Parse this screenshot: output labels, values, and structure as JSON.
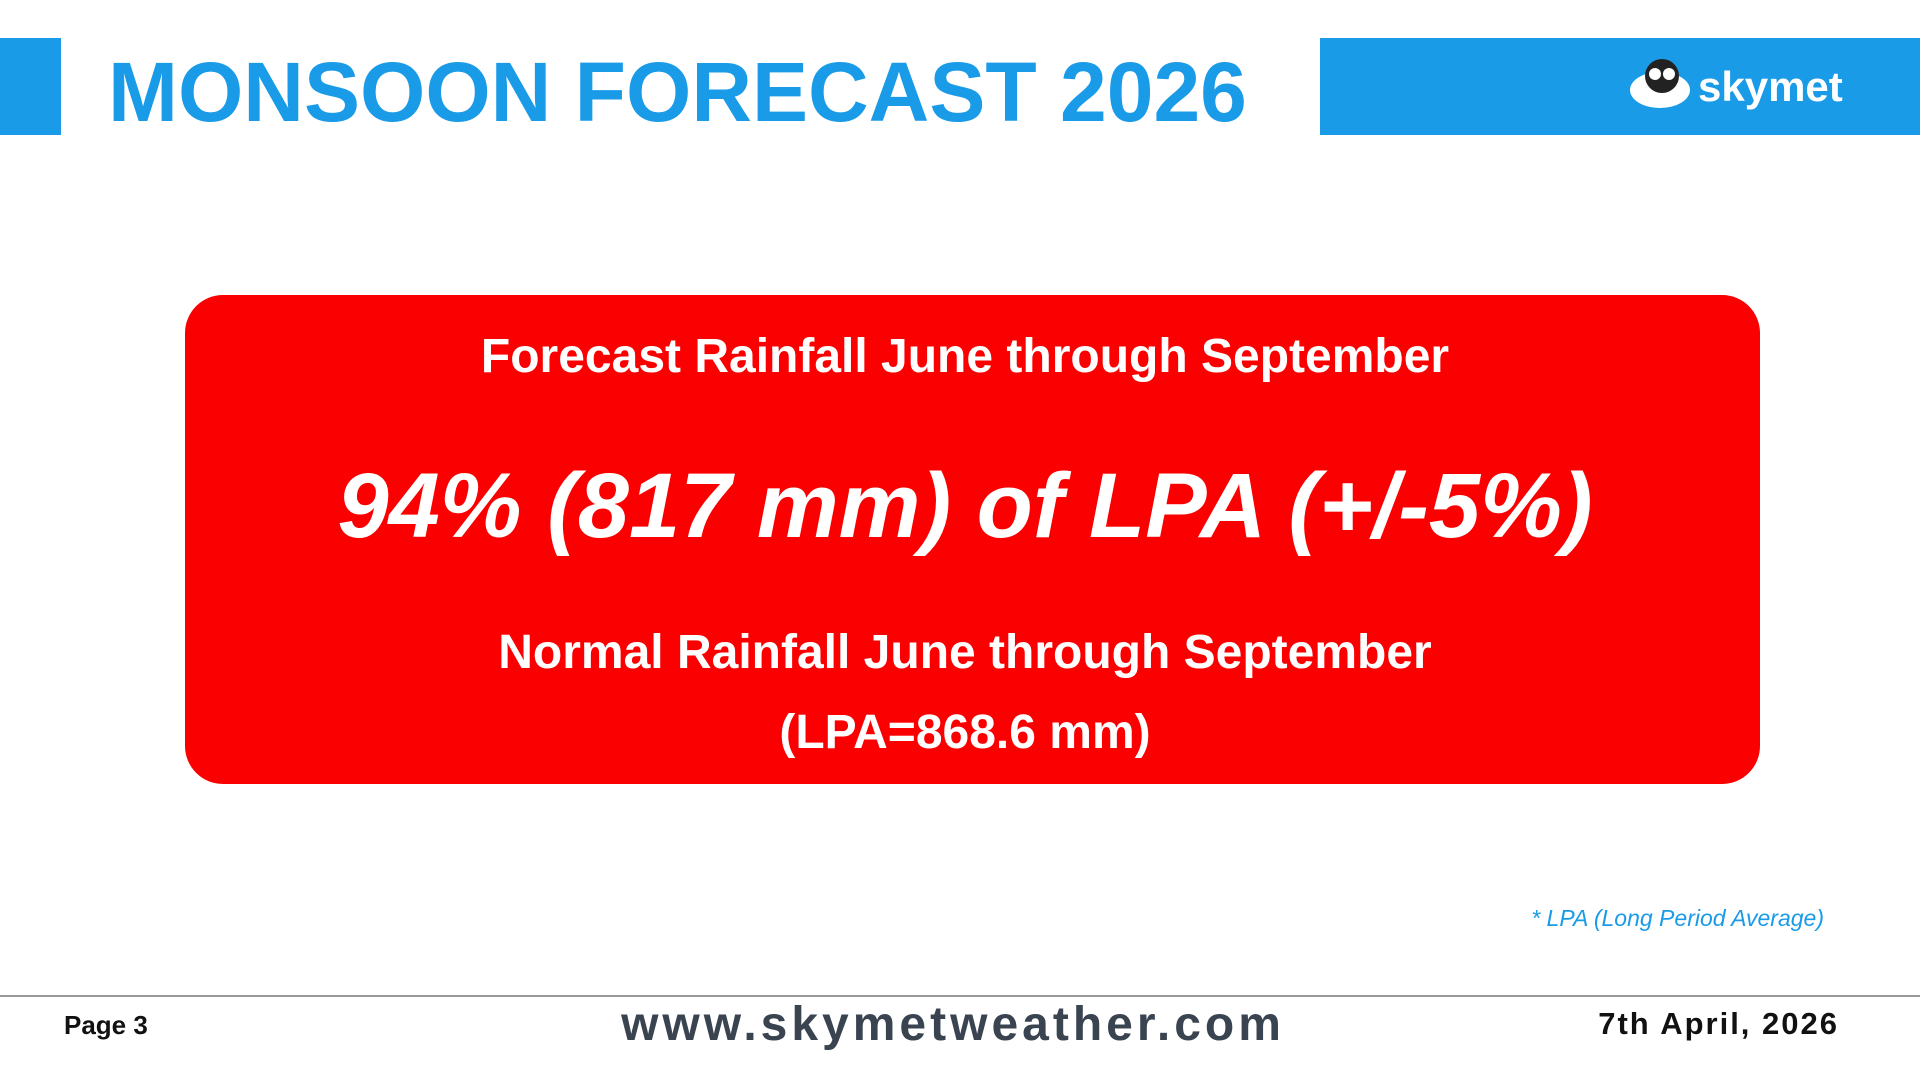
{
  "header": {
    "title": "MONSOON FORECAST 2026",
    "logo": "skymet"
  },
  "box": {
    "heading": "Forecast Rainfall June through September",
    "forecast": "94% (817 mm) of LPA (+/-5%)",
    "normal": "Normal Rainfall June through September",
    "lpa": "(LPA=868.6 mm)"
  },
  "footnote": "* LPA (Long Period Average)",
  "footer": {
    "page": "Page 3",
    "url": "www.skymetweather.com",
    "date": "7th April, 2026"
  }
}
